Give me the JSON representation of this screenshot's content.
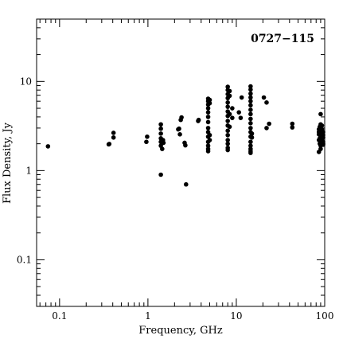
{
  "chart_data": {
    "type": "scatter",
    "title": "",
    "annotation": "0727−115",
    "xlabel": "Frequency, GHz",
    "ylabel": "Flux Density, Jy",
    "x_scale": "log",
    "y_scale": "log",
    "xlim": [
      0.055,
      100
    ],
    "ylim": [
      0.03,
      50
    ],
    "x_ticks": [
      {
        "value": 0.1,
        "label": "0.1"
      },
      {
        "value": 1,
        "label": "1"
      },
      {
        "value": 10,
        "label": "10"
      },
      {
        "value": 100,
        "label": "100"
      }
    ],
    "y_ticks": [
      {
        "value": 0.1,
        "label": "0.1"
      },
      {
        "value": 1,
        "label": "1"
      },
      {
        "value": 10,
        "label": "10"
      }
    ],
    "grid": false,
    "marker_color": "#000000",
    "points": [
      [
        0.074,
        1.87
      ],
      [
        0.36,
        1.97
      ],
      [
        0.365,
        1.99
      ],
      [
        0.408,
        2.35
      ],
      [
        0.408,
        2.65
      ],
      [
        0.96,
        2.1
      ],
      [
        0.98,
        2.4
      ],
      [
        1.4,
        3.3
      ],
      [
        1.4,
        2.95
      ],
      [
        1.4,
        2.6
      ],
      [
        1.4,
        2.3
      ],
      [
        1.4,
        2.1
      ],
      [
        1.4,
        1.9
      ],
      [
        1.4,
        0.9
      ],
      [
        1.45,
        1.75
      ],
      [
        1.48,
        2.2
      ],
      [
        1.5,
        2.05
      ],
      [
        2.2,
        2.9
      ],
      [
        2.25,
        2.95
      ],
      [
        2.3,
        2.55
      ],
      [
        2.35,
        3.7
      ],
      [
        2.4,
        3.95
      ],
      [
        2.6,
        2.05
      ],
      [
        2.65,
        1.92
      ],
      [
        2.7,
        0.7
      ],
      [
        3.7,
        3.6
      ],
      [
        3.75,
        3.7
      ],
      [
        4.8,
        6.4
      ],
      [
        4.8,
        6.0
      ],
      [
        4.8,
        5.5
      ],
      [
        4.8,
        5.0
      ],
      [
        4.8,
        4.5
      ],
      [
        4.8,
        4.0
      ],
      [
        4.8,
        3.5
      ],
      [
        4.8,
        3.0
      ],
      [
        4.8,
        2.7
      ],
      [
        4.8,
        2.4
      ],
      [
        4.8,
        2.1
      ],
      [
        4.8,
        1.9
      ],
      [
        4.8,
        1.75
      ],
      [
        4.8,
        1.65
      ],
      [
        5.0,
        6.2
      ],
      [
        5.0,
        5.7
      ],
      [
        5.0,
        2.5
      ],
      [
        5.0,
        2.2
      ],
      [
        8.0,
        8.7
      ],
      [
        8.0,
        8.0
      ],
      [
        8.0,
        7.2
      ],
      [
        8.0,
        6.5
      ],
      [
        8.0,
        5.8
      ],
      [
        8.0,
        5.2
      ],
      [
        8.0,
        4.6
      ],
      [
        8.0,
        4.1
      ],
      [
        8.0,
        3.6
      ],
      [
        8.0,
        3.2
      ],
      [
        8.0,
        2.8
      ],
      [
        8.0,
        2.5
      ],
      [
        8.0,
        2.2
      ],
      [
        8.0,
        2.0
      ],
      [
        8.0,
        1.8
      ],
      [
        8.0,
        1.7
      ],
      [
        8.4,
        7.8
      ],
      [
        8.4,
        6.9
      ],
      [
        8.4,
        4.3
      ],
      [
        8.4,
        3.1
      ],
      [
        9.0,
        5.0
      ],
      [
        9.0,
        3.9
      ],
      [
        10.7,
        4.5
      ],
      [
        11.5,
        6.6
      ],
      [
        11.2,
        3.9
      ],
      [
        14.5,
        8.8
      ],
      [
        14.5,
        8.1
      ],
      [
        14.5,
        7.3
      ],
      [
        14.5,
        6.6
      ],
      [
        14.5,
        6.0
      ],
      [
        14.5,
        5.4
      ],
      [
        14.5,
        4.8
      ],
      [
        14.5,
        4.3
      ],
      [
        14.5,
        3.8
      ],
      [
        14.5,
        3.4
      ],
      [
        14.5,
        3.0
      ],
      [
        14.5,
        2.7
      ],
      [
        14.5,
        2.4
      ],
      [
        14.5,
        2.1
      ],
      [
        14.5,
        1.9
      ],
      [
        14.5,
        1.75
      ],
      [
        14.5,
        1.65
      ],
      [
        14.5,
        1.58
      ],
      [
        15.0,
        2.6
      ],
      [
        15.0,
        2.35
      ],
      [
        20.5,
        6.6
      ],
      [
        22.0,
        5.8
      ],
      [
        22.0,
        3.0
      ],
      [
        23.5,
        3.35
      ],
      [
        43.0,
        3.35
      ],
      [
        43.0,
        3.05
      ],
      [
        86.0,
        2.9
      ],
      [
        86.0,
        2.7
      ],
      [
        86.0,
        2.55
      ],
      [
        86.0,
        2.2
      ],
      [
        86.0,
        1.62
      ],
      [
        88.0,
        3.1
      ],
      [
        88.0,
        2.3
      ],
      [
        88.0,
        2.0
      ],
      [
        90.0,
        4.3
      ],
      [
        90.0,
        3.3
      ],
      [
        90.0,
        3.0
      ],
      [
        90.0,
        2.8
      ],
      [
        90.0,
        2.6
      ],
      [
        90.0,
        2.45
      ],
      [
        90.0,
        2.3
      ],
      [
        90.0,
        2.15
      ],
      [
        90.0,
        2.0
      ],
      [
        90.0,
        1.9
      ],
      [
        90.0,
        1.75
      ],
      [
        93.0,
        3.2
      ],
      [
        93.0,
        2.9
      ],
      [
        93.0,
        2.6
      ],
      [
        93.0,
        2.4
      ],
      [
        93.0,
        2.25
      ],
      [
        93.0,
        2.1
      ],
      [
        96.0,
        2.7
      ],
      [
        96.0,
        2.5
      ],
      [
        96.0,
        2.35
      ],
      [
        96.0,
        2.1
      ],
      [
        96.0,
        2.0
      ],
      [
        96.0,
        1.95
      ]
    ]
  }
}
